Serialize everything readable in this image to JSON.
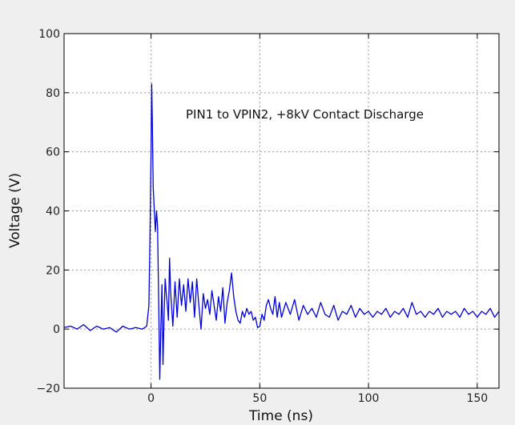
{
  "chart_data": {
    "type": "line",
    "title": "",
    "xlabel": "Time (ns)",
    "ylabel": "Voltage (V)",
    "xlim": [
      -40,
      160
    ],
    "ylim": [
      -20,
      100
    ],
    "xticks": [
      0,
      50,
      100,
      150
    ],
    "yticks": [
      -20,
      0,
      20,
      40,
      60,
      80,
      100
    ],
    "xtick_labels": [
      "0",
      "50",
      "100",
      "150"
    ],
    "ytick_labels": [
      "−20",
      "0",
      "20",
      "40",
      "60",
      "80",
      "100"
    ],
    "grid": true,
    "annotation": "PIN1 to VPIN2, +8kV Contact Discharge",
    "line_color": "#0000dd",
    "series": [
      {
        "x": [
          -40,
          -37,
          -34,
          -31,
          -28,
          -25,
          -22,
          -19,
          -16,
          -13,
          -10,
          -7,
          -4,
          -2,
          -1,
          -0.5,
          0,
          0.3,
          0.6,
          1,
          1.5,
          2,
          2.5,
          3,
          3.5,
          4,
          4.5,
          5,
          5.5,
          6,
          6.5,
          7,
          7.5,
          8,
          8.5,
          9,
          10,
          11,
          12,
          13,
          14,
          15,
          16,
          17,
          18,
          19,
          20,
          21,
          22,
          23,
          24,
          25,
          26,
          27,
          28,
          29,
          30,
          31,
          32,
          33,
          34,
          35,
          36,
          37,
          38,
          39,
          40,
          41,
          42,
          43,
          44,
          45,
          46,
          47,
          48,
          49,
          50,
          51,
          52,
          53,
          54,
          55,
          56,
          57,
          58,
          59,
          60,
          62,
          64,
          66,
          68,
          70,
          72,
          74,
          76,
          78,
          80,
          82,
          84,
          86,
          88,
          90,
          92,
          94,
          96,
          98,
          100,
          102,
          104,
          106,
          108,
          110,
          112,
          114,
          116,
          118,
          120,
          122,
          124,
          126,
          128,
          130,
          132,
          134,
          136,
          138,
          140,
          142,
          144,
          146,
          148,
          150,
          152,
          154,
          156,
          158,
          160
        ],
        "y": [
          0.5,
          1,
          0,
          1.5,
          -0.5,
          1,
          0,
          0.5,
          -1,
          1,
          0,
          0.5,
          0,
          1,
          8,
          30,
          60,
          83,
          70,
          48,
          40,
          33,
          40,
          35,
          10,
          -17,
          0,
          15,
          -12,
          5,
          17,
          12,
          8,
          3,
          24,
          13,
          1,
          16,
          4,
          17,
          8,
          15,
          6,
          17,
          9,
          16,
          4,
          17,
          8,
          0,
          12,
          7,
          10,
          5,
          13,
          8,
          3,
          11,
          6,
          14,
          2,
          9,
          13,
          19,
          11,
          6,
          3,
          2,
          6,
          4,
          7,
          5,
          6,
          3,
          4,
          0.5,
          1,
          5,
          3,
          8,
          10,
          7,
          5,
          11,
          4,
          9,
          4,
          9,
          5,
          10,
          3,
          8,
          5,
          7,
          4,
          9,
          5,
          4,
          8,
          3,
          6,
          5,
          8,
          4,
          7,
          5,
          6,
          4,
          6,
          5,
          7,
          4,
          6,
          5,
          7,
          4,
          9,
          5,
          6,
          4,
          6,
          5,
          7,
          4,
          6,
          5,
          6,
          4,
          7,
          5,
          6,
          4,
          6,
          5,
          7,
          4,
          6
        ]
      }
    ]
  }
}
